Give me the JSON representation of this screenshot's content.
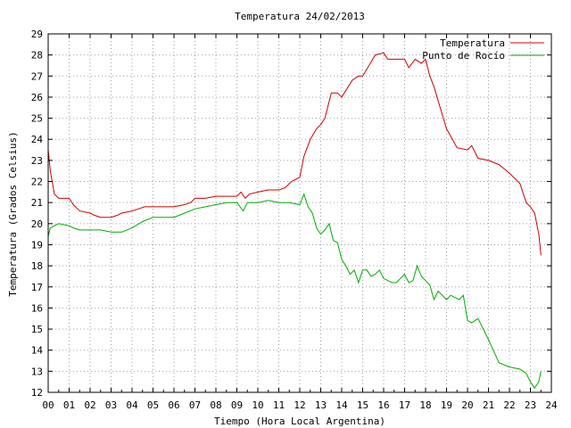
{
  "chart_data": {
    "type": "line",
    "title": "Temperatura 24/02/2013",
    "xlabel": "Tiempo (Hora Local Argentina)",
    "ylabel": "Temperatura (Grados Celsius)",
    "xlim": [
      0,
      24
    ],
    "ylim": [
      12,
      29
    ],
    "x_tick_labels": [
      "00",
      "01",
      "02",
      "03",
      "04",
      "05",
      "06",
      "07",
      "08",
      "09",
      "10",
      "11",
      "12",
      "13",
      "14",
      "15",
      "16",
      "17",
      "18",
      "19",
      "20",
      "21",
      "22",
      "23",
      "24"
    ],
    "y_tick_labels": [
      "12",
      "13",
      "14",
      "15",
      "16",
      "17",
      "18",
      "19",
      "20",
      "21",
      "22",
      "23",
      "24",
      "25",
      "26",
      "27",
      "28",
      "29"
    ],
    "grid": true,
    "legend_position": "top-right",
    "series": [
      {
        "name": "Temperatura",
        "color": "#cc0000",
        "x": [
          0,
          0.1,
          0.3,
          0.5,
          1,
          1.2,
          1.5,
          2,
          2.2,
          2.5,
          3,
          3.3,
          3.5,
          4,
          4.3,
          4.6,
          5,
          5.5,
          6,
          6.5,
          6.8,
          7,
          7.5,
          8,
          8.5,
          9,
          9.2,
          9.4,
          9.6,
          10,
          10.5,
          11,
          11.3,
          11.6,
          12,
          12.2,
          12.5,
          12.8,
          13,
          13.2,
          13.5,
          13.8,
          14,
          14.5,
          14.8,
          15,
          15.3,
          15.6,
          16,
          16.2,
          16.5,
          17,
          17.2,
          17.5,
          17.8,
          18,
          18.2,
          18.4,
          18.7,
          19,
          19.5,
          20,
          20.2,
          20.5,
          21,
          21.5,
          22,
          22.5,
          22.8,
          23,
          23.2,
          23.4,
          23.5
        ],
        "y": [
          23.5,
          22.5,
          21.4,
          21.2,
          21.2,
          20.9,
          20.6,
          20.5,
          20.4,
          20.3,
          20.3,
          20.4,
          20.5,
          20.6,
          20.7,
          20.8,
          20.8,
          20.8,
          20.8,
          20.9,
          21.0,
          21.2,
          21.2,
          21.3,
          21.3,
          21.3,
          21.5,
          21.2,
          21.4,
          21.5,
          21.6,
          21.6,
          21.7,
          22.0,
          22.2,
          23.2,
          24.0,
          24.5,
          24.7,
          25.0,
          26.2,
          26.2,
          26.0,
          26.8,
          27.0,
          27.0,
          27.5,
          28.0,
          28.1,
          27.8,
          27.8,
          27.8,
          27.4,
          27.8,
          27.6,
          27.8,
          27.0,
          26.5,
          25.5,
          24.5,
          23.6,
          23.5,
          23.7,
          23.1,
          23.0,
          22.8,
          22.4,
          21.9,
          21.0,
          20.8,
          20.5,
          19.5,
          18.5
        ]
      },
      {
        "name": "Punto de Rocío",
        "color": "#00aa00",
        "x": [
          0,
          0.1,
          0.3,
          0.5,
          1,
          1.2,
          1.5,
          2,
          2.5,
          3,
          3.5,
          4,
          4.5,
          5,
          5.5,
          6,
          6.5,
          7,
          7.5,
          8,
          8.5,
          9,
          9.3,
          9.5,
          10,
          10.5,
          11,
          11.5,
          12,
          12.2,
          12.4,
          12.6,
          12.8,
          13,
          13.2,
          13.4,
          13.6,
          13.8,
          14,
          14.2,
          14.4,
          14.6,
          14.8,
          15,
          15.2,
          15.4,
          15.6,
          15.8,
          16,
          16.2,
          16.4,
          16.6,
          16.8,
          17,
          17.2,
          17.4,
          17.6,
          17.8,
          18,
          18.2,
          18.4,
          18.6,
          18.8,
          19,
          19.2,
          19.4,
          19.6,
          19.8,
          20,
          20.2,
          20.5,
          21,
          21.5,
          22,
          22.5,
          22.8,
          23,
          23.2,
          23.4,
          23.5
        ],
        "y": [
          19.4,
          19.8,
          19.9,
          20.0,
          19.9,
          19.8,
          19.7,
          19.7,
          19.7,
          19.6,
          19.6,
          19.8,
          20.1,
          20.3,
          20.3,
          20.3,
          20.5,
          20.7,
          20.8,
          20.9,
          21.0,
          21.0,
          20.6,
          21.0,
          21.0,
          21.1,
          21.0,
          21.0,
          20.9,
          21.4,
          20.8,
          20.5,
          19.8,
          19.5,
          19.7,
          20.0,
          19.2,
          19.1,
          18.3,
          18.0,
          17.6,
          17.8,
          17.2,
          17.8,
          17.8,
          17.5,
          17.6,
          17.8,
          17.4,
          17.3,
          17.2,
          17.2,
          17.4,
          17.6,
          17.2,
          17.3,
          18.0,
          17.5,
          17.3,
          17.1,
          16.4,
          16.8,
          16.6,
          16.4,
          16.6,
          16.5,
          16.4,
          16.6,
          15.4,
          15.3,
          15.5,
          14.5,
          13.4,
          13.2,
          13.1,
          12.9,
          12.5,
          12.2,
          12.5,
          13.0
        ]
      }
    ]
  }
}
